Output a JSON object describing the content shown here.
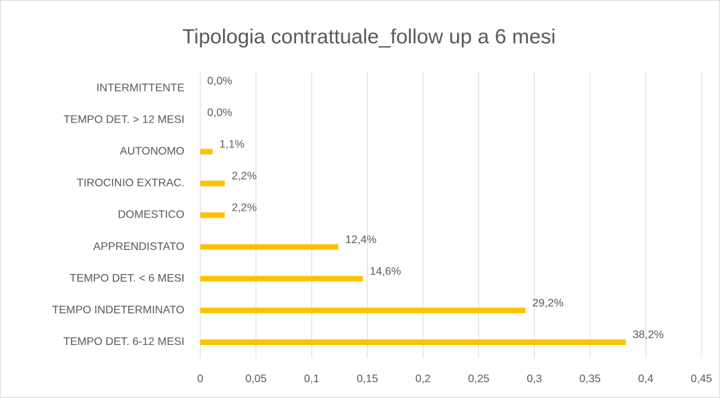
{
  "chart_data": {
    "type": "hbar",
    "title": "Tipologia contrattuale_follow up a 6 mesi",
    "categories": [
      "INTERMITTENTE",
      "TEMPO DET. > 12 MESI",
      "AUTONOMO",
      "TIROCINIO EXTRAC.",
      "DOMESTICO",
      "APPRENDISTATO",
      "TEMPO DET. < 6 MESI",
      "TEMPO INDETERMINATO",
      "TEMPO DET. 6-12 MESI"
    ],
    "values": [
      0,
      0,
      0.011,
      0.022,
      0.022,
      0.124,
      0.146,
      0.292,
      0.382
    ],
    "value_labels": [
      "0,0%",
      "0,0%",
      "1,1%",
      "2,2%",
      "2,2%",
      "12,4%",
      "14,6%",
      "29,2%",
      "38,2%"
    ],
    "color": "#ffc000",
    "xlim": [
      0,
      0.45
    ],
    "xticks": [
      0,
      {
        "value": 0.05,
        "label": "0,05"
      },
      {
        "value": 0.1,
        "label": "0,1"
      },
      {
        "value": 0.15,
        "label": "0,15"
      },
      {
        "value": 0.2,
        "label": "0,2"
      },
      {
        "value": 0.25,
        "label": "0,25"
      },
      {
        "value": 0.3,
        "label": "0,3"
      },
      {
        "value": 0.35,
        "label": "0,35"
      },
      {
        "value": 0.4,
        "label": "0,4"
      },
      {
        "value": 0.45,
        "label": "0,45"
      }
    ],
    "grid": true
  }
}
